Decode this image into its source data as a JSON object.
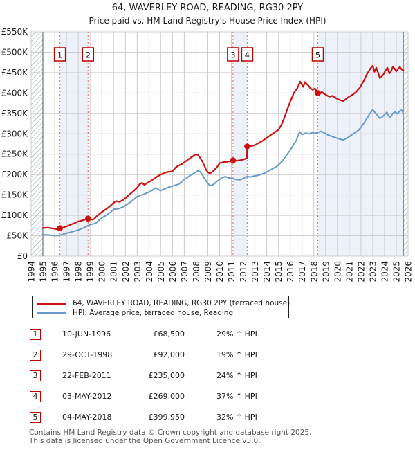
{
  "title": "64, WAVERLEY ROAD, READING, RG30 2PY",
  "subtitle": "Price paid vs. HM Land Registry's House Price Index (HPI)",
  "colors": {
    "property_line": "#cc1111",
    "hpi_line": "#6699cc",
    "sale_dash": "#f07b7b",
    "band_fill": "#ecf1fa",
    "grid": "#cccccc",
    "hatch": "#c3c8d0",
    "hatch_edge": "#6b7280",
    "badge_border": "#bb0000",
    "text": "#1a1a1a",
    "footer_text": "#555555"
  },
  "legend": {
    "series1_label": "64, WAVERLEY ROAD, READING, RG30 2PY (terraced house)",
    "series2_label": "HPI: Average price, terraced house, Reading"
  },
  "transactions": [
    {
      "num": "1",
      "date": "10-JUN-1996",
      "price": "£68,500",
      "hpi_delta": "29% ↑ HPI"
    },
    {
      "num": "2",
      "date": "29-OCT-1998",
      "price": "£92,000",
      "hpi_delta": "19% ↑ HPI"
    },
    {
      "num": "3",
      "date": "22-FEB-2011",
      "price": "£235,000",
      "hpi_delta": "24% ↑ HPI"
    },
    {
      "num": "4",
      "date": "03-MAY-2012",
      "price": "£269,000",
      "hpi_delta": "37% ↑ HPI"
    },
    {
      "num": "5",
      "date": "04-MAY-2018",
      "price": "£399,950",
      "hpi_delta": "32% ↑ HPI"
    }
  ],
  "footer": {
    "line1": "Contains HM Land Registry data © Crown copyright and database right 2025.",
    "line2": "This data is licensed under the Open Government Licence v3.0."
  },
  "chart_data": {
    "type": "line",
    "title": "64, WAVERLEY ROAD, READING, RG30 2PY — Price paid vs. HPI",
    "x_axis": {
      "min": 1994,
      "max": 2026,
      "tick_labels": [
        "1994",
        "1995",
        "1996",
        "1997",
        "1998",
        "1999",
        "2000",
        "2001",
        "2002",
        "2003",
        "2004",
        "2005",
        "2006",
        "2007",
        "2008",
        "2009",
        "2010",
        "2011",
        "2012",
        "2013",
        "2014",
        "2015",
        "2016",
        "2017",
        "2018",
        "2019",
        "2020",
        "2021",
        "2022",
        "2023",
        "2024",
        "2025",
        "2026"
      ]
    },
    "y_axis": {
      "min_k": 0,
      "max_k": 550,
      "step_k": 50,
      "tick_labels": [
        "£0",
        "£50K",
        "£100K",
        "£150K",
        "£200K",
        "£250K",
        "£300K",
        "£350K",
        "£400K",
        "£450K",
        "£500K",
        "£550K"
      ]
    },
    "grid": true,
    "legend_position": "below",
    "data_start_year": 1995.0,
    "data_end_year": 2025.6,
    "hatch_regions": [
      [
        1994.0,
        1995.0
      ],
      [
        2025.6,
        2026.0
      ]
    ],
    "shaded_bands": [
      [
        1996.44,
        1998.83
      ],
      [
        2011.14,
        2012.34
      ],
      [
        2018.34,
        2025.6
      ]
    ],
    "sales": [
      {
        "label": "1",
        "year": 1996.44,
        "price_k": 68.5
      },
      {
        "label": "2",
        "year": 1998.83,
        "price_k": 92
      },
      {
        "label": "3",
        "year": 2011.14,
        "price_k": 235
      },
      {
        "label": "4",
        "year": 2012.34,
        "price_k": 269
      },
      {
        "label": "5",
        "year": 2018.34,
        "price_k": 399.95
      }
    ],
    "series": [
      {
        "name": "64, WAVERLEY ROAD, READING, RG30 2PY (terraced house)",
        "color": "#cc1111",
        "points_year_gbpk": [
          [
            1995.0,
            69
          ],
          [
            1995.2,
            69.5
          ],
          [
            1995.4,
            70
          ],
          [
            1995.6,
            69
          ],
          [
            1995.8,
            68
          ],
          [
            1996.0,
            67
          ],
          [
            1996.2,
            66
          ],
          [
            1996.44,
            68.5
          ],
          [
            1996.7,
            70
          ],
          [
            1996.9,
            72
          ],
          [
            1997.2,
            75
          ],
          [
            1997.4,
            78
          ],
          [
            1997.7,
            81
          ],
          [
            1997.9,
            84
          ],
          [
            1998.2,
            86.5
          ],
          [
            1998.4,
            88
          ],
          [
            1998.6,
            90
          ],
          [
            1998.83,
            92
          ],
          [
            1999.0,
            91
          ],
          [
            1999.2,
            89.5
          ],
          [
            1999.35,
            91
          ],
          [
            1999.5,
            96
          ],
          [
            1999.75,
            102
          ],
          [
            2000.0,
            108
          ],
          [
            2000.25,
            113
          ],
          [
            2000.5,
            118
          ],
          [
            2000.75,
            124
          ],
          [
            2001.0,
            131
          ],
          [
            2001.25,
            135
          ],
          [
            2001.5,
            133
          ],
          [
            2001.75,
            137
          ],
          [
            2002.0,
            142
          ],
          [
            2002.25,
            149
          ],
          [
            2002.5,
            155
          ],
          [
            2002.75,
            161
          ],
          [
            2003.0,
            168
          ],
          [
            2003.2,
            176
          ],
          [
            2003.4,
            180
          ],
          [
            2003.6,
            175
          ],
          [
            2003.8,
            178
          ],
          [
            2004.0,
            182
          ],
          [
            2004.25,
            186
          ],
          [
            2004.5,
            191
          ],
          [
            2004.75,
            196
          ],
          [
            2005.0,
            200
          ],
          [
            2005.25,
            203
          ],
          [
            2005.5,
            206
          ],
          [
            2005.75,
            207
          ],
          [
            2006.0,
            208
          ],
          [
            2006.25,
            217
          ],
          [
            2006.5,
            222
          ],
          [
            2006.75,
            225
          ],
          [
            2007.0,
            230
          ],
          [
            2007.33,
            237
          ],
          [
            2007.67,
            244
          ],
          [
            2008.0,
            250
          ],
          [
            2008.15,
            248
          ],
          [
            2008.3,
            243
          ],
          [
            2008.5,
            234
          ],
          [
            2008.7,
            222
          ],
          [
            2008.85,
            212
          ],
          [
            2009.0,
            206
          ],
          [
            2009.15,
            203
          ],
          [
            2009.3,
            205
          ],
          [
            2009.5,
            210
          ],
          [
            2009.75,
            217
          ],
          [
            2010.0,
            228
          ],
          [
            2010.25,
            230
          ],
          [
            2010.5,
            231
          ],
          [
            2010.75,
            232
          ],
          [
            2011.0,
            233
          ],
          [
            2011.14,
            235
          ],
          [
            2011.4,
            234
          ],
          [
            2011.7,
            235
          ],
          [
            2012.0,
            237
          ],
          [
            2012.32,
            240
          ],
          [
            2012.34,
            269
          ],
          [
            2012.6,
            270
          ],
          [
            2012.85,
            271
          ],
          [
            2013.1,
            274
          ],
          [
            2013.35,
            278
          ],
          [
            2013.6,
            282
          ],
          [
            2013.85,
            287
          ],
          [
            2014.1,
            292
          ],
          [
            2014.35,
            297
          ],
          [
            2014.6,
            302
          ],
          [
            2014.85,
            307
          ],
          [
            2015.0,
            310
          ],
          [
            2015.25,
            322
          ],
          [
            2015.5,
            340
          ],
          [
            2015.75,
            360
          ],
          [
            2016.0,
            379
          ],
          [
            2016.3,
            400
          ],
          [
            2016.6,
            412
          ],
          [
            2016.84,
            428
          ],
          [
            2017.0,
            420
          ],
          [
            2017.1,
            415
          ],
          [
            2017.25,
            427
          ],
          [
            2017.4,
            422
          ],
          [
            2017.55,
            418
          ],
          [
            2017.7,
            412
          ],
          [
            2017.9,
            408
          ],
          [
            2018.1,
            411
          ],
          [
            2018.34,
            400
          ],
          [
            2018.5,
            397
          ],
          [
            2018.67,
            403
          ],
          [
            2018.83,
            399
          ],
          [
            2019.0,
            396
          ],
          [
            2019.3,
            391
          ],
          [
            2019.6,
            393
          ],
          [
            2019.9,
            387
          ],
          [
            2020.2,
            383
          ],
          [
            2020.5,
            380
          ],
          [
            2020.8,
            387
          ],
          [
            2021.0,
            391
          ],
          [
            2021.3,
            396
          ],
          [
            2021.6,
            403
          ],
          [
            2021.9,
            413
          ],
          [
            2022.2,
            428
          ],
          [
            2022.5,
            446
          ],
          [
            2022.8,
            460
          ],
          [
            2023.0,
            467
          ],
          [
            2023.15,
            452
          ],
          [
            2023.3,
            462
          ],
          [
            2023.45,
            450
          ],
          [
            2023.6,
            437
          ],
          [
            2023.75,
            440
          ],
          [
            2023.9,
            445
          ],
          [
            2024.1,
            456
          ],
          [
            2024.25,
            462
          ],
          [
            2024.4,
            448
          ],
          [
            2024.55,
            453
          ],
          [
            2024.7,
            464
          ],
          [
            2024.85,
            460
          ],
          [
            2025.0,
            453
          ],
          [
            2025.15,
            459
          ],
          [
            2025.3,
            464
          ],
          [
            2025.45,
            458
          ],
          [
            2025.6,
            456
          ]
        ]
      },
      {
        "name": "HPI: Average price, terraced house, Reading",
        "color": "#6699cc",
        "points_year_gbpk": [
          [
            1995.0,
            52
          ],
          [
            1995.25,
            52.5
          ],
          [
            1995.5,
            52
          ],
          [
            1995.75,
            51
          ],
          [
            1996.0,
            50
          ],
          [
            1996.25,
            50.5
          ],
          [
            1996.5,
            52
          ],
          [
            1996.75,
            54
          ],
          [
            1997.0,
            56
          ],
          [
            1997.25,
            58
          ],
          [
            1997.5,
            60
          ],
          [
            1997.75,
            62
          ],
          [
            1998.0,
            64
          ],
          [
            1998.25,
            67
          ],
          [
            1998.5,
            70
          ],
          [
            1998.75,
            74
          ],
          [
            1999.0,
            77
          ],
          [
            1999.25,
            79
          ],
          [
            1999.5,
            81
          ],
          [
            1999.75,
            88
          ],
          [
            2000.0,
            94
          ],
          [
            2000.25,
            98
          ],
          [
            2000.5,
            103
          ],
          [
            2000.75,
            108
          ],
          [
            2001.0,
            115
          ],
          [
            2001.25,
            116
          ],
          [
            2001.5,
            117
          ],
          [
            2001.75,
            120
          ],
          [
            2002.0,
            124
          ],
          [
            2002.25,
            129
          ],
          [
            2002.5,
            134
          ],
          [
            2002.75,
            140
          ],
          [
            2003.0,
            146
          ],
          [
            2003.25,
            149
          ],
          [
            2003.5,
            151
          ],
          [
            2003.75,
            154
          ],
          [
            2004.0,
            157
          ],
          [
            2004.3,
            162
          ],
          [
            2004.58,
            168
          ],
          [
            2004.8,
            163
          ],
          [
            2005.0,
            161
          ],
          [
            2005.25,
            164
          ],
          [
            2005.5,
            167
          ],
          [
            2005.75,
            170
          ],
          [
            2006.0,
            172
          ],
          [
            2006.25,
            174
          ],
          [
            2006.5,
            176
          ],
          [
            2006.75,
            181
          ],
          [
            2007.0,
            188
          ],
          [
            2007.25,
            193
          ],
          [
            2007.5,
            198
          ],
          [
            2007.75,
            202
          ],
          [
            2008.0,
            206
          ],
          [
            2008.17,
            210
          ],
          [
            2008.35,
            207
          ],
          [
            2008.55,
            199
          ],
          [
            2008.75,
            189
          ],
          [
            2009.0,
            178
          ],
          [
            2009.17,
            173
          ],
          [
            2009.35,
            174
          ],
          [
            2009.55,
            177
          ],
          [
            2009.75,
            183
          ],
          [
            2010.0,
            188
          ],
          [
            2010.25,
            193
          ],
          [
            2010.5,
            195
          ],
          [
            2010.75,
            192
          ],
          [
            2011.0,
            191
          ],
          [
            2011.14,
            190
          ],
          [
            2011.4,
            188
          ],
          [
            2011.7,
            187
          ],
          [
            2012.0,
            190
          ],
          [
            2012.34,
            196
          ],
          [
            2012.6,
            194
          ],
          [
            2012.85,
            196
          ],
          [
            2013.1,
            197
          ],
          [
            2013.35,
            199
          ],
          [
            2013.6,
            201
          ],
          [
            2013.85,
            204
          ],
          [
            2014.1,
            208
          ],
          [
            2014.35,
            212
          ],
          [
            2014.6,
            216
          ],
          [
            2014.85,
            220
          ],
          [
            2015.0,
            224
          ],
          [
            2015.25,
            231
          ],
          [
            2015.5,
            240
          ],
          [
            2015.75,
            250
          ],
          [
            2016.0,
            260
          ],
          [
            2016.25,
            272
          ],
          [
            2016.5,
            283
          ],
          [
            2016.8,
            305
          ],
          [
            2017.0,
            298
          ],
          [
            2017.3,
            302
          ],
          [
            2017.6,
            300
          ],
          [
            2017.9,
            303
          ],
          [
            2018.1,
            301
          ],
          [
            2018.34,
            303
          ],
          [
            2018.6,
            306
          ],
          [
            2018.9,
            302
          ],
          [
            2019.2,
            297
          ],
          [
            2019.5,
            294
          ],
          [
            2019.8,
            291
          ],
          [
            2020.1,
            288
          ],
          [
            2020.5,
            285
          ],
          [
            2020.9,
            291
          ],
          [
            2021.2,
            297
          ],
          [
            2021.5,
            303
          ],
          [
            2021.8,
            309
          ],
          [
            2022.1,
            320
          ],
          [
            2022.4,
            333
          ],
          [
            2022.7,
            347
          ],
          [
            2023.0,
            359
          ],
          [
            2023.2,
            352
          ],
          [
            2023.4,
            345
          ],
          [
            2023.6,
            338
          ],
          [
            2023.8,
            341
          ],
          [
            2024.0,
            347
          ],
          [
            2024.2,
            353
          ],
          [
            2024.35,
            344
          ],
          [
            2024.5,
            340
          ],
          [
            2024.7,
            350
          ],
          [
            2024.9,
            354
          ],
          [
            2025.1,
            349
          ],
          [
            2025.3,
            356
          ],
          [
            2025.45,
            358
          ],
          [
            2025.6,
            350
          ]
        ]
      }
    ]
  }
}
